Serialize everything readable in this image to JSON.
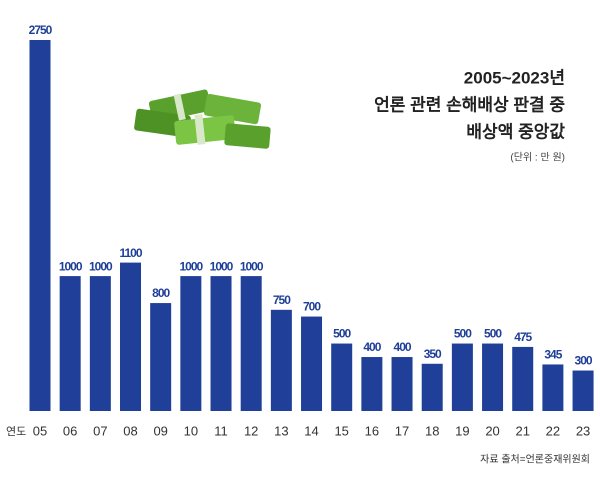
{
  "chart_data": {
    "type": "bar",
    "title": [
      "2005~2023년",
      "언론 관련 손해배상 판결 중",
      "배상액 중앙값"
    ],
    "unit_note": "(단위 : 만 원)",
    "x_label": "연도",
    "source": "자료 출처=언론중재위원회",
    "categories": [
      "05",
      "06",
      "07",
      "08",
      "09",
      "10",
      "11",
      "12",
      "13",
      "14",
      "15",
      "16",
      "17",
      "18",
      "19",
      "20",
      "21",
      "22",
      "23"
    ],
    "values": [
      2750,
      1000,
      1000,
      1100,
      800,
      1000,
      1000,
      1000,
      750,
      700,
      500,
      400,
      400,
      350,
      500,
      500,
      475,
      345,
      300
    ],
    "color": "#1f3f98"
  }
}
